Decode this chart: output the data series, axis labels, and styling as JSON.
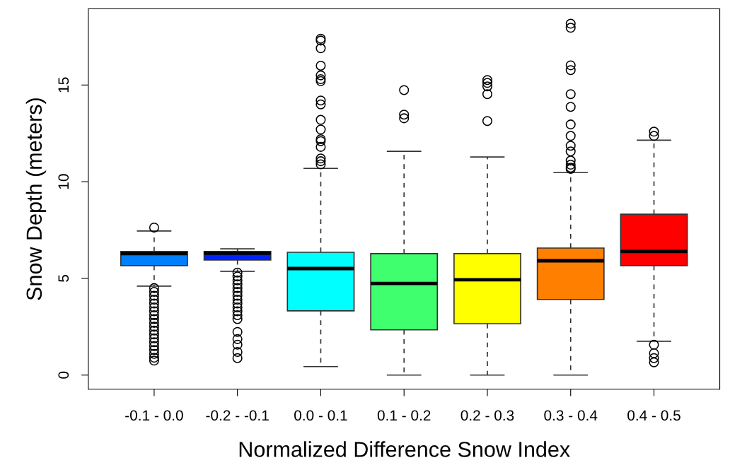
{
  "chart_data": {
    "type": "box",
    "xlabel": "Normalized Difference Snow Index",
    "ylabel": "Snow Depth (meters)",
    "categories": [
      "-0.1 - 0.0",
      "-0.2 - -0.1",
      "0.0 - 0.1",
      "0.1 - 0.2",
      "0.2 - 0.3",
      "0.3 - 0.4",
      "0.4 - 0.5"
    ],
    "colors": [
      "#0080ff",
      "#0022ff",
      "#00ffff",
      "#40ff6e",
      "#ffff00",
      "#ff8000",
      "#ff0000"
    ],
    "ylim": [
      -0.73,
      18.94
    ],
    "yticks": [
      0,
      5,
      10,
      15
    ],
    "grid": false,
    "legend": false,
    "boxes": [
      {
        "low": 4.6,
        "q1": 5.66,
        "median": 6.28,
        "q3": 6.39,
        "high": 7.45,
        "outliers": [
          7.63,
          4.5,
          4.3,
          4.1,
          3.9,
          3.7,
          3.5,
          3.3,
          3.1,
          2.9,
          2.7,
          2.5,
          2.3,
          2.1,
          1.9,
          1.7,
          1.5,
          1.3,
          1.1,
          0.9,
          0.75
        ]
      },
      {
        "low": 5.37,
        "q1": 5.95,
        "median": 6.3,
        "q3": 6.39,
        "high": 6.53,
        "outliers": [
          5.3,
          5.1,
          4.9,
          4.7,
          4.5,
          4.3,
          4.1,
          3.9,
          3.7,
          3.5,
          3.3,
          3.1,
          2.9,
          2.23,
          1.86,
          1.57,
          1.2,
          0.88
        ]
      },
      {
        "low": 0.44,
        "q1": 3.32,
        "median": 5.51,
        "q3": 6.35,
        "high": 10.69,
        "outliers": [
          17.4,
          17.3,
          16.9,
          16.0,
          15.5,
          15.3,
          15.2,
          14.2,
          14.0,
          13.2,
          12.7,
          12.2,
          12.1,
          11.8,
          11.2,
          11.06,
          10.9
        ]
      },
      {
        "low": 0,
        "q1": 2.34,
        "median": 4.74,
        "q3": 6.28,
        "high": 11.57,
        "outliers": [
          14.74,
          13.47,
          13.28
        ]
      },
      {
        "low": 0,
        "q1": 2.66,
        "median": 4.93,
        "q3": 6.28,
        "high": 11.28,
        "outliers": [
          15.26,
          15.11,
          14.93,
          14.53,
          13.14
        ]
      },
      {
        "low": 0,
        "q1": 3.91,
        "median": 5.91,
        "q3": 6.57,
        "high": 10.47,
        "outliers": [
          18.17,
          17.96,
          16.02,
          15.77,
          14.53,
          13.87,
          12.96,
          12.37,
          11.86,
          11.57,
          11.09,
          10.88,
          10.73,
          10.66
        ]
      },
      {
        "low": 1.75,
        "q1": 5.66,
        "median": 6.39,
        "q3": 8.32,
        "high": 12.15,
        "outliers": [
          12.59,
          12.37,
          1.57,
          1.13,
          0.88,
          0.66
        ]
      }
    ]
  }
}
